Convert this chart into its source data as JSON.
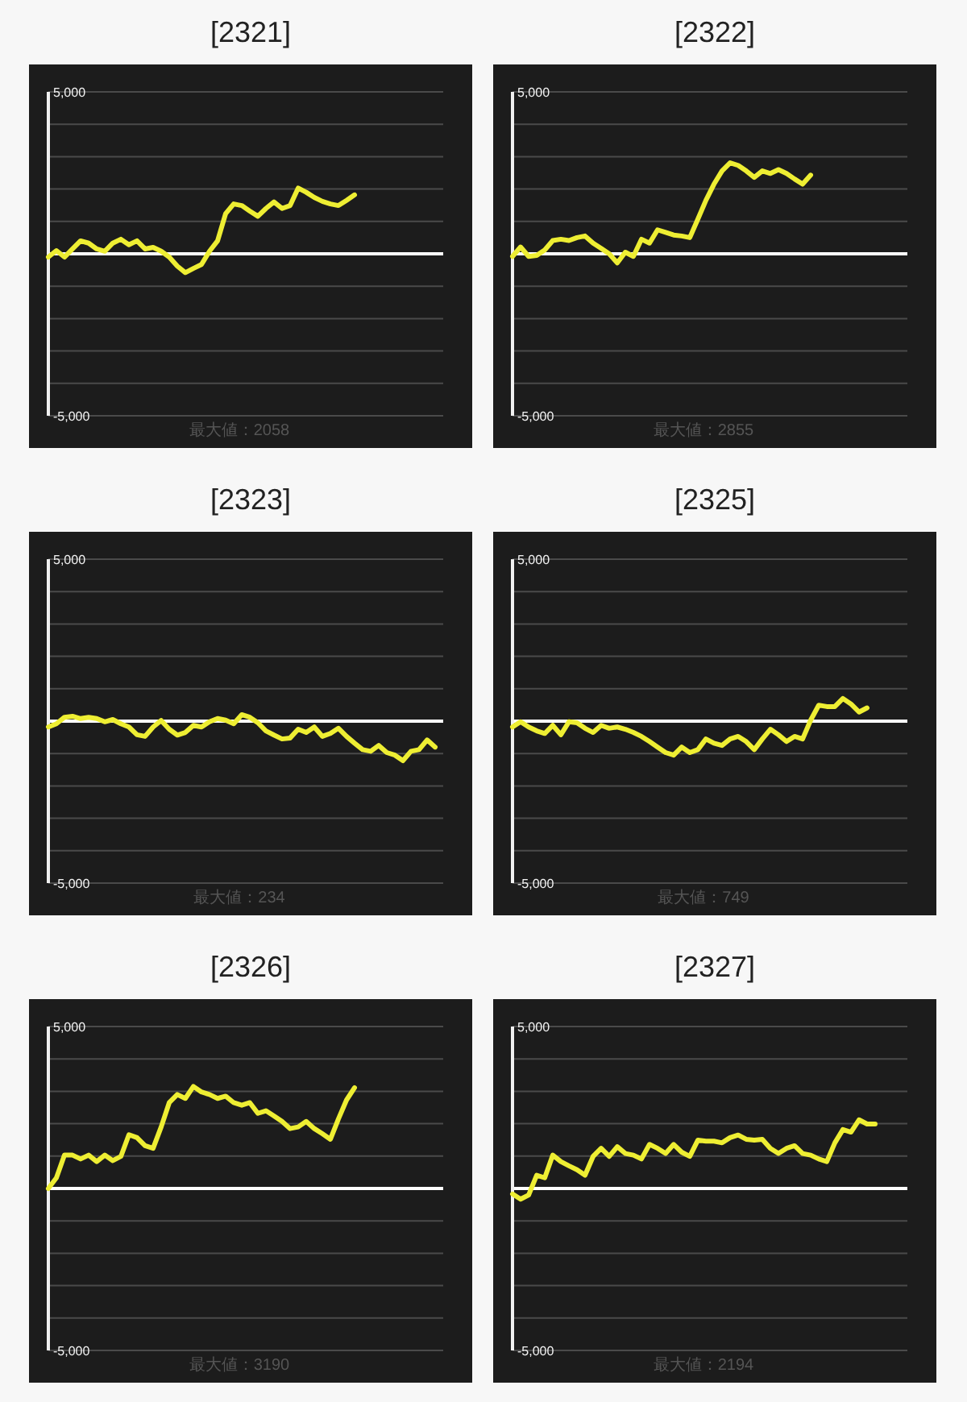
{
  "chart_data": [
    {
      "type": "line",
      "title": "[2321]",
      "categories": [
        null,
        null,
        null,
        null,
        null,
        null,
        null,
        null,
        null,
        null,
        null,
        null,
        null,
        null,
        null,
        null,
        null,
        null,
        null,
        null,
        null,
        null,
        null,
        null,
        null,
        null,
        null,
        null,
        null,
        null,
        null,
        null,
        null,
        null,
        null,
        null,
        null,
        null,
        null,
        null,
        null,
        null,
        null,
        null,
        null,
        null,
        null,
        null,
        null,
        null
      ],
      "series": [
        {
          "color": "#eeee33",
          "values": [
            -100,
            100,
            -100,
            150,
            400,
            330,
            150,
            80,
            330,
            450,
            280,
            400,
            150,
            200,
            80,
            -100,
            -380,
            -580,
            -450,
            -330,
            80,
            400,
            1240,
            1540,
            1490,
            1320,
            1160,
            1400,
            1600,
            1400,
            1490,
            2030,
            1900,
            1740,
            1620,
            1540,
            1490,
            1650,
            1820,
            null,
            null,
            null,
            null,
            null,
            null,
            null,
            null,
            null,
            null,
            null
          ]
        }
      ],
      "ylim": [
        -5000,
        5000
      ],
      "yticks": [
        {
          "value": -5000,
          "label": "-5,000"
        },
        {
          "value": -4000,
          "label": null
        },
        {
          "value": -3000,
          "label": null
        },
        {
          "value": -2000,
          "label": null
        },
        {
          "value": -1000,
          "label": null
        },
        {
          "value": 0,
          "label": null
        },
        {
          "value": 1000,
          "label": null
        },
        {
          "value": 2000,
          "label": null
        },
        {
          "value": 3000,
          "label": null
        },
        {
          "value": 4000,
          "label": null
        },
        {
          "value": 5000,
          "label": "5,000"
        }
      ],
      "grid": "y",
      "tick_labels": "y",
      "ref_lines": [
        {
          "axis": "y",
          "value": 0,
          "color": "#ffffff"
        }
      ],
      "annotations": [
        "最大値：2058"
      ]
    },
    {
      "type": "line",
      "title": "[2322]",
      "categories": [
        null,
        null,
        null,
        null,
        null,
        null,
        null,
        null,
        null,
        null,
        null,
        null,
        null,
        null,
        null,
        null,
        null,
        null,
        null,
        null,
        null,
        null,
        null,
        null,
        null,
        null,
        null,
        null,
        null,
        null,
        null,
        null,
        null,
        null,
        null,
        null,
        null,
        null,
        null,
        null,
        null,
        null,
        null,
        null,
        null,
        null,
        null,
        null,
        null,
        null
      ],
      "series": [
        {
          "color": "#eeee33",
          "values": [
            -80,
            210,
            -80,
            -50,
            120,
            410,
            450,
            410,
            500,
            550,
            330,
            170,
            0,
            -280,
            50,
            -80,
            450,
            330,
            740,
            660,
            580,
            550,
            500,
            1070,
            1650,
            2150,
            2560,
            2810,
            2730,
            2560,
            2360,
            2560,
            2480,
            2600,
            2480,
            2310,
            2150,
            2430,
            null,
            null,
            null,
            null,
            null,
            null,
            null,
            null,
            null,
            null,
            null,
            null
          ]
        }
      ],
      "ylim": [
        -5000,
        5000
      ],
      "yticks": [
        {
          "value": -5000,
          "label": "-5,000"
        },
        {
          "value": -4000,
          "label": null
        },
        {
          "value": -3000,
          "label": null
        },
        {
          "value": -2000,
          "label": null
        },
        {
          "value": -1000,
          "label": null
        },
        {
          "value": 0,
          "label": null
        },
        {
          "value": 1000,
          "label": null
        },
        {
          "value": 2000,
          "label": null
        },
        {
          "value": 3000,
          "label": null
        },
        {
          "value": 4000,
          "label": null
        },
        {
          "value": 5000,
          "label": "5,000"
        }
      ],
      "grid": "y",
      "tick_labels": "y",
      "ref_lines": [
        {
          "axis": "y",
          "value": 0,
          "color": "#ffffff"
        }
      ],
      "annotations": [
        "最大値：2855"
      ]
    },
    {
      "type": "line",
      "title": "[2323]",
      "categories": [
        null,
        null,
        null,
        null,
        null,
        null,
        null,
        null,
        null,
        null,
        null,
        null,
        null,
        null,
        null,
        null,
        null,
        null,
        null,
        null,
        null,
        null,
        null,
        null,
        null,
        null,
        null,
        null,
        null,
        null,
        null,
        null,
        null,
        null,
        null,
        null,
        null,
        null,
        null,
        null,
        null,
        null,
        null,
        null,
        null,
        null,
        null,
        null,
        null,
        null
      ],
      "series": [
        {
          "color": "#eeee33",
          "values": [
            -180,
            -80,
            120,
            150,
            80,
            120,
            80,
            -20,
            50,
            -80,
            -180,
            -420,
            -470,
            -180,
            20,
            -250,
            -430,
            -350,
            -130,
            -180,
            -20,
            80,
            30,
            -80,
            200,
            120,
            -50,
            -300,
            -430,
            -550,
            -520,
            -250,
            -350,
            -180,
            -470,
            -380,
            -220,
            -470,
            -680,
            -880,
            -930,
            -750,
            -970,
            -1050,
            -1220,
            -930,
            -880,
            -580,
            -800,
            null
          ]
        }
      ],
      "ylim": [
        -5000,
        5000
      ],
      "yticks": [
        {
          "value": -5000,
          "label": "-5,000"
        },
        {
          "value": -4000,
          "label": null
        },
        {
          "value": -3000,
          "label": null
        },
        {
          "value": -2000,
          "label": null
        },
        {
          "value": -1000,
          "label": null
        },
        {
          "value": 0,
          "label": null
        },
        {
          "value": 1000,
          "label": null
        },
        {
          "value": 2000,
          "label": null
        },
        {
          "value": 3000,
          "label": null
        },
        {
          "value": 4000,
          "label": null
        },
        {
          "value": 5000,
          "label": "5,000"
        }
      ],
      "grid": "y",
      "tick_labels": "y",
      "ref_lines": [
        {
          "axis": "y",
          "value": 0,
          "color": "#ffffff"
        }
      ],
      "annotations": [
        "最大値：234"
      ]
    },
    {
      "type": "line",
      "title": "[2325]",
      "categories": [
        null,
        null,
        null,
        null,
        null,
        null,
        null,
        null,
        null,
        null,
        null,
        null,
        null,
        null,
        null,
        null,
        null,
        null,
        null,
        null,
        null,
        null,
        null,
        null,
        null,
        null,
        null,
        null,
        null,
        null,
        null,
        null,
        null,
        null,
        null,
        null,
        null,
        null,
        null,
        null,
        null,
        null,
        null,
        null,
        null,
        null,
        null,
        null,
        null,
        null
      ],
      "series": [
        {
          "color": "#eeee33",
          "values": [
            -180,
            -20,
            -180,
            -300,
            -380,
            -130,
            -420,
            -20,
            -50,
            -220,
            -350,
            -130,
            -220,
            -180,
            -250,
            -350,
            -470,
            -630,
            -800,
            -970,
            -1050,
            -800,
            -970,
            -880,
            -550,
            -680,
            -750,
            -550,
            -470,
            -630,
            -880,
            -550,
            -250,
            -420,
            -630,
            -470,
            -550,
            30,
            490,
            450,
            450,
            700,
            530,
            280,
            410,
            null,
            null,
            null,
            null,
            null
          ]
        }
      ],
      "ylim": [
        -5000,
        5000
      ],
      "yticks": [
        {
          "value": -5000,
          "label": "-5,000"
        },
        {
          "value": -4000,
          "label": null
        },
        {
          "value": -3000,
          "label": null
        },
        {
          "value": -2000,
          "label": null
        },
        {
          "value": -1000,
          "label": null
        },
        {
          "value": 0,
          "label": null
        },
        {
          "value": 1000,
          "label": null
        },
        {
          "value": 2000,
          "label": null
        },
        {
          "value": 3000,
          "label": null
        },
        {
          "value": 4000,
          "label": null
        },
        {
          "value": 5000,
          "label": "5,000"
        }
      ],
      "grid": "y",
      "tick_labels": "y",
      "ref_lines": [
        {
          "axis": "y",
          "value": 0,
          "color": "#ffffff"
        }
      ],
      "annotations": [
        "最大値：749"
      ]
    },
    {
      "type": "line",
      "title": "[2326]",
      "categories": [
        null,
        null,
        null,
        null,
        null,
        null,
        null,
        null,
        null,
        null,
        null,
        null,
        null,
        null,
        null,
        null,
        null,
        null,
        null,
        null,
        null,
        null,
        null,
        null,
        null,
        null,
        null,
        null,
        null,
        null,
        null,
        null,
        null,
        null,
        null,
        null,
        null,
        null,
        null,
        null,
        null,
        null,
        null,
        null,
        null,
        null,
        null,
        null,
        null,
        null
      ],
      "series": [
        {
          "color": "#eeee33",
          "values": [
            0,
            330,
            1030,
            1030,
            910,
            1030,
            830,
            1030,
            860,
            990,
            1660,
            1570,
            1320,
            1240,
            1900,
            2650,
            2900,
            2780,
            3150,
            2980,
            2900,
            2780,
            2850,
            2650,
            2570,
            2650,
            2320,
            2400,
            2240,
            2070,
            1850,
            1900,
            2070,
            1850,
            1690,
            1520,
            2150,
            2730,
            3110,
            null,
            null,
            null,
            null,
            null,
            null,
            null,
            null,
            null,
            null,
            null
          ]
        }
      ],
      "ylim": [
        -5000,
        5000
      ],
      "yticks": [
        {
          "value": -5000,
          "label": "-5,000"
        },
        {
          "value": -4000,
          "label": null
        },
        {
          "value": -3000,
          "label": null
        },
        {
          "value": -2000,
          "label": null
        },
        {
          "value": -1000,
          "label": null
        },
        {
          "value": 0,
          "label": null
        },
        {
          "value": 1000,
          "label": null
        },
        {
          "value": 2000,
          "label": null
        },
        {
          "value": 3000,
          "label": null
        },
        {
          "value": 4000,
          "label": null
        },
        {
          "value": 5000,
          "label": "5,000"
        }
      ],
      "grid": "y",
      "tick_labels": "y",
      "ref_lines": [
        {
          "axis": "y",
          "value": 0,
          "color": "#ffffff"
        }
      ],
      "annotations": [
        "最大値：3190"
      ]
    },
    {
      "type": "line",
      "title": "[2327]",
      "categories": [
        null,
        null,
        null,
        null,
        null,
        null,
        null,
        null,
        null,
        null,
        null,
        null,
        null,
        null,
        null,
        null,
        null,
        null,
        null,
        null,
        null,
        null,
        null,
        null,
        null,
        null,
        null,
        null,
        null,
        null,
        null,
        null,
        null,
        null,
        null,
        null,
        null,
        null,
        null,
        null,
        null,
        null,
        null,
        null,
        null,
        null,
        null,
        null,
        null,
        null
      ],
      "series": [
        {
          "color": "#eeee33",
          "values": [
            -170,
            -330,
            -200,
            410,
            330,
            1030,
            830,
            700,
            580,
            410,
            990,
            1240,
            990,
            1290,
            1080,
            1030,
            910,
            1360,
            1240,
            1080,
            1360,
            1120,
            990,
            1490,
            1460,
            1460,
            1410,
            1570,
            1650,
            1520,
            1490,
            1520,
            1240,
            1080,
            1240,
            1320,
            1080,
            1030,
            910,
            830,
            1410,
            1820,
            1740,
            2120,
            1990,
            1990,
            null,
            null,
            null,
            null
          ]
        }
      ],
      "ylim": [
        -5000,
        5000
      ],
      "yticks": [
        {
          "value": -5000,
          "label": "-5,000"
        },
        {
          "value": -4000,
          "label": null
        },
        {
          "value": -3000,
          "label": null
        },
        {
          "value": -2000,
          "label": null
        },
        {
          "value": -1000,
          "label": null
        },
        {
          "value": 0,
          "label": null
        },
        {
          "value": 1000,
          "label": null
        },
        {
          "value": 2000,
          "label": null
        },
        {
          "value": 3000,
          "label": null
        },
        {
          "value": 4000,
          "label": null
        },
        {
          "value": 5000,
          "label": "5,000"
        }
      ],
      "grid": "y",
      "tick_labels": "y",
      "ref_lines": [
        {
          "axis": "y",
          "value": 0,
          "color": "#ffffff"
        }
      ],
      "annotations": [
        "最大値：2194"
      ]
    }
  ]
}
